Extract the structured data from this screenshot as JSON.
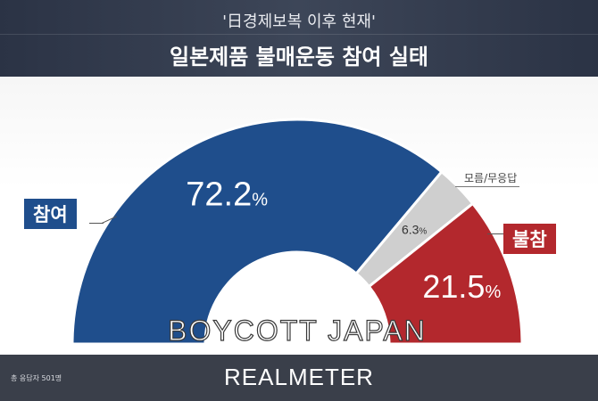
{
  "header": {
    "subtitle": "'日경제보복 이후 현재'",
    "title": "일본제품 불매운동 참여 실태"
  },
  "chart_data": {
    "type": "pie",
    "style": "half-donut",
    "title": "일본제품 불매운동 참여 실태",
    "subtitle": "'日경제보복 이후 현재'",
    "slices": [
      {
        "label": "참여",
        "value": 72.2,
        "value_text": "72.2",
        "unit": "%",
        "color": "#1f4e8c"
      },
      {
        "label": "모름/무응답",
        "value": 6.3,
        "value_text": "6.3",
        "unit": "%",
        "color": "#cfcfcf"
      },
      {
        "label": "불참",
        "value": 21.5,
        "value_text": "21.5",
        "unit": "%",
        "color": "#b3282d"
      }
    ],
    "center_text": "BOYCOTT JAPAN"
  },
  "footer": {
    "note": "총 응답자 501명",
    "brand": "REALMETER"
  }
}
